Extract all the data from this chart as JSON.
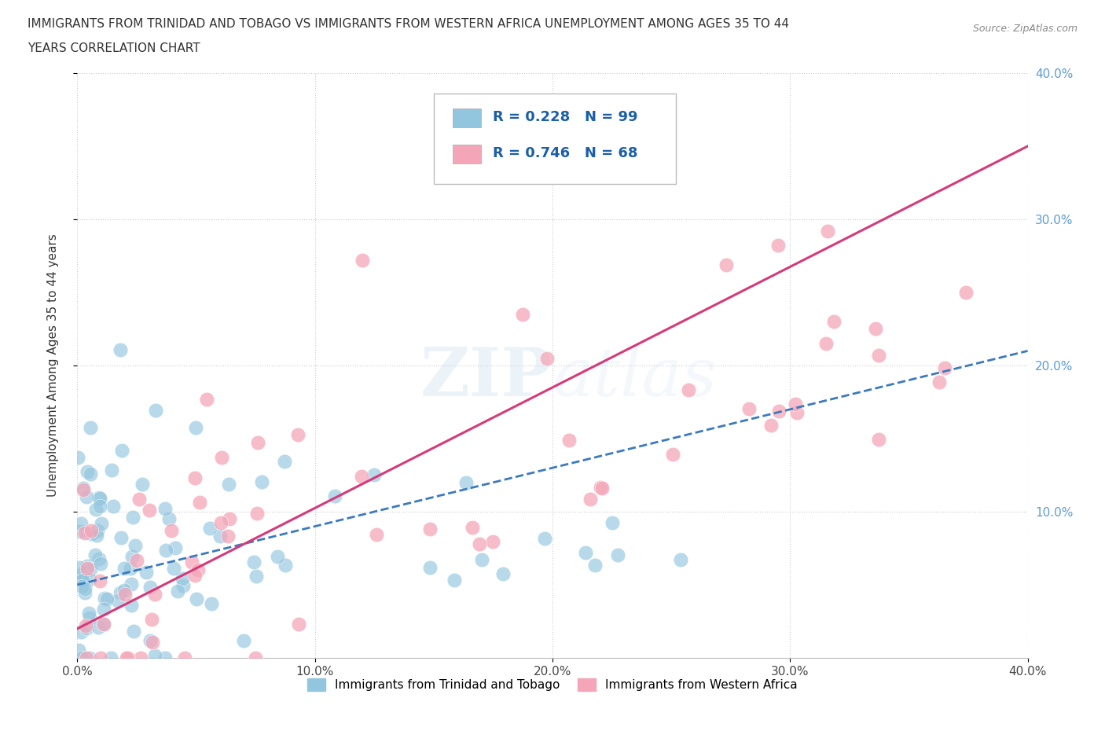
{
  "title_line1": "IMMIGRANTS FROM TRINIDAD AND TOBAGO VS IMMIGRANTS FROM WESTERN AFRICA UNEMPLOYMENT AMONG AGES 35 TO 44",
  "title_line2": "YEARS CORRELATION CHART",
  "source": "Source: ZipAtlas.com",
  "ylabel": "Unemployment Among Ages 35 to 44 years",
  "xlim": [
    0.0,
    0.4
  ],
  "ylim": [
    0.0,
    0.4
  ],
  "xtick_vals": [
    0.0,
    0.1,
    0.2,
    0.3,
    0.4
  ],
  "ytick_vals_right": [
    0.1,
    0.2,
    0.3,
    0.4
  ],
  "R_blue": 0.228,
  "N_blue": 99,
  "R_pink": 0.746,
  "N_pink": 68,
  "blue_color": "#92c5de",
  "pink_color": "#f4a6b8",
  "blue_line_color": "#3a7abf",
  "pink_line_color": "#d63a7a",
  "legend_text_color": "#1a5fa8",
  "watermark": "ZIPatlas",
  "background_color": "#ffffff",
  "grid_color": "#cccccc"
}
